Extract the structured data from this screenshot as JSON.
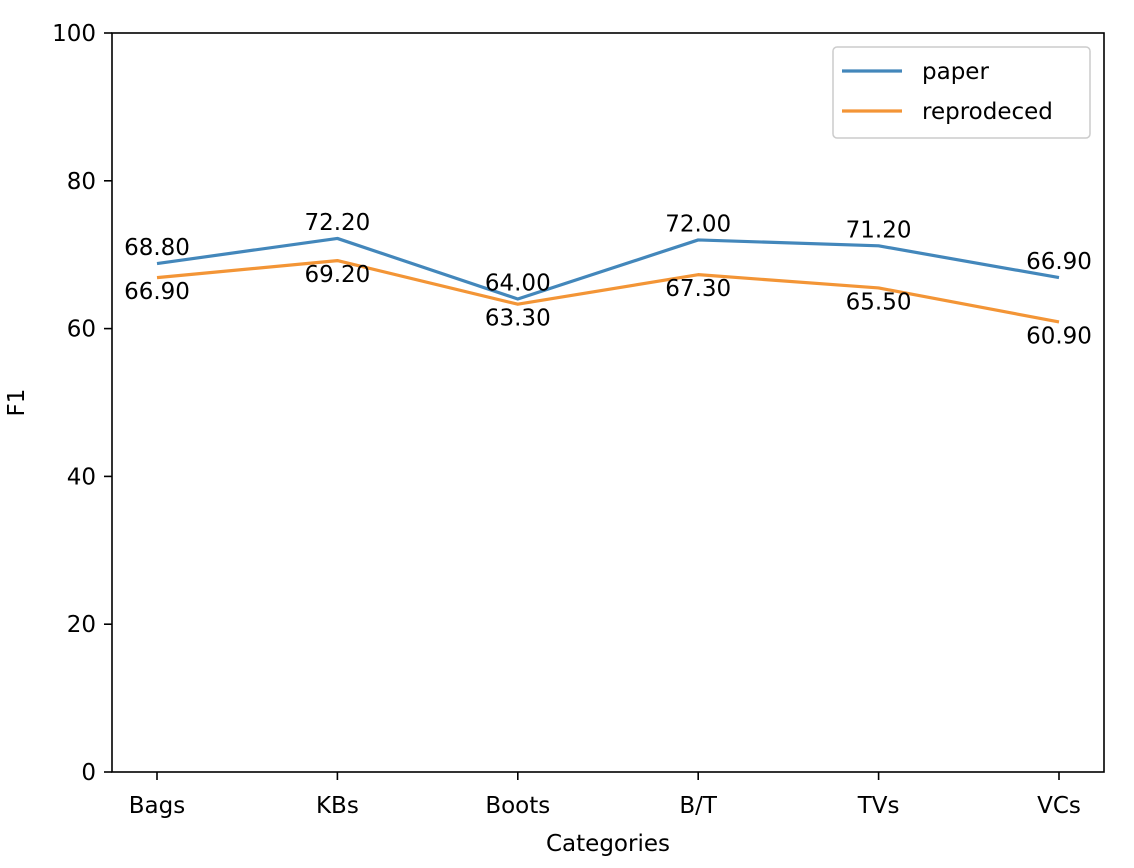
{
  "chart_data": {
    "type": "line",
    "title": "",
    "xlabel": "Categories",
    "ylabel": "F1",
    "categories": [
      "Bags",
      "KBs",
      "Boots",
      "B/T",
      "TVs",
      "VCs"
    ],
    "ylim": [
      0,
      100
    ],
    "yticks": [
      0,
      20,
      40,
      60,
      80,
      100
    ],
    "grid": false,
    "legend_position": "top-right",
    "series": [
      {
        "name": "paper",
        "color": "#4387bb",
        "values": [
          68.8,
          72.2,
          64.0,
          72.0,
          71.2,
          66.9
        ],
        "labels": [
          "68.80",
          "72.20",
          "64.00",
          "72.00",
          "71.20",
          "66.90"
        ]
      },
      {
        "name": "reprodeced",
        "color": "#f39536",
        "values": [
          66.9,
          69.2,
          63.3,
          67.3,
          65.5,
          60.9
        ],
        "labels": [
          "66.90",
          "69.20",
          "63.30",
          "67.30",
          "65.50",
          "60.90"
        ]
      }
    ]
  }
}
